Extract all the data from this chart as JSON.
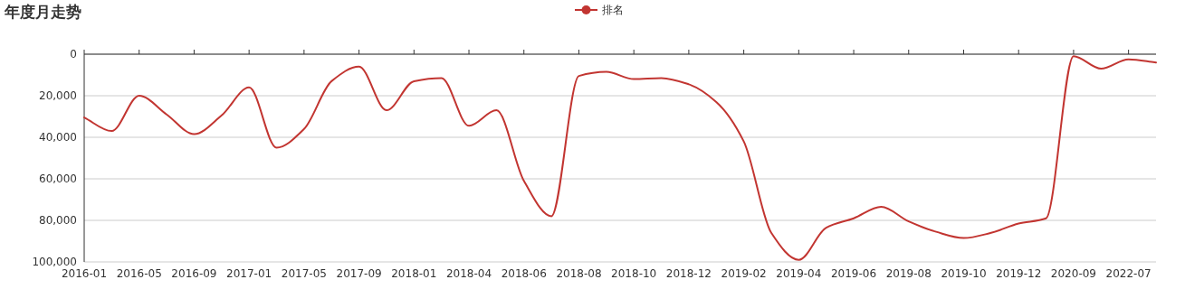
{
  "chart_data": {
    "type": "line",
    "title": "年度月走势",
    "categories": [
      "2016-01",
      null,
      "2016-05",
      null,
      "2016-09",
      null,
      "2017-01",
      null,
      "2017-05",
      null,
      "2017-09",
      null,
      "2018-01",
      null,
      "2018-04",
      null,
      "2018-06",
      null,
      "2018-08",
      null,
      "2018-10",
      null,
      "2018-12",
      null,
      "2019-02",
      null,
      "2019-04",
      null,
      "2019-06",
      null,
      "2019-08",
      null,
      "2019-10",
      null,
      "2019-12",
      null,
      "2020-09",
      null,
      "2022-07",
      null
    ],
    "series": [
      {
        "name": "排名",
        "color": "#c23531",
        "values": [
          30500,
          37000,
          20000,
          29000,
          38500,
          29500,
          16000,
          45000,
          36000,
          13000,
          6000,
          27000,
          13000,
          11500,
          34500,
          27000,
          61000,
          78000,
          10500,
          8500,
          12000,
          11500,
          14500,
          23000,
          42000,
          86000,
          99000,
          83500,
          79000,
          73500,
          80500,
          85500,
          88500,
          86000,
          81500,
          79000,
          1000,
          7000,
          2500,
          4000
        ]
      }
    ],
    "ylim": [
      100000,
      0
    ],
    "yticks": [
      0,
      {
        "value": 20000,
        "label": "20,000"
      },
      {
        "value": 40000,
        "label": "40,000"
      },
      {
        "value": 60000,
        "label": "60,000"
      },
      {
        "value": 80000,
        "label": "80,000"
      },
      {
        "value": 100000,
        "label": "100,000"
      }
    ],
    "grid": "y",
    "legend": "top",
    "marker": "none",
    "line_style": "solid"
  }
}
